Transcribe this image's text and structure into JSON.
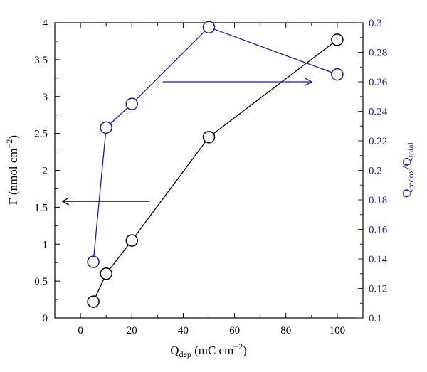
{
  "chart_data": {
    "type": "line",
    "title": "",
    "xlabel": {
      "main": "Q",
      "sub": "dep",
      "rest": " (mC cm",
      "sup": "−2",
      "end": ")"
    },
    "ylabel_left": {
      "main": "Γ (nmol cm",
      "sup": "−2",
      "end": ")"
    },
    "ylabel_right": {
      "main1": "Q",
      "sub1": "redox",
      "slash": "/Q",
      "sub2": "total"
    },
    "xlim": [
      -10,
      110
    ],
    "ylim_left": [
      0,
      4
    ],
    "ylim_right": [
      0.1,
      0.3
    ],
    "x_ticks": [
      "0",
      "20",
      "40",
      "60",
      "80",
      "100"
    ],
    "y_left_ticks": [
      "0",
      "0.5",
      "1",
      "1.5",
      "2",
      "2.5",
      "3",
      "3.5",
      "4"
    ],
    "y_right_ticks": [
      "0.1",
      "0.12",
      "0.14",
      "0.16",
      "0.18",
      "0.2",
      "0.22",
      "0.24",
      "0.26",
      "0.28",
      "0.3"
    ],
    "series": [
      {
        "axis": "left",
        "color": "#000000",
        "x": [
          5,
          10,
          20,
          50,
          100
        ],
        "y": [
          0.22,
          0.6,
          1.05,
          2.45,
          3.77
        ]
      },
      {
        "axis": "right",
        "color": "#1a1aa6",
        "x": [
          5,
          10,
          20,
          50,
          100
        ],
        "y": [
          0.138,
          0.229,
          0.245,
          0.297,
          0.265
        ]
      }
    ],
    "annotations": [
      {
        "type": "arrow",
        "color": "#000000",
        "x_from": 27,
        "x_to": -7,
        "y": 1.58,
        "axis": "left"
      },
      {
        "type": "arrow",
        "color": "#1a1aa6",
        "x_from": 32,
        "x_to": 90,
        "y": 0.26,
        "axis": "right"
      }
    ]
  }
}
